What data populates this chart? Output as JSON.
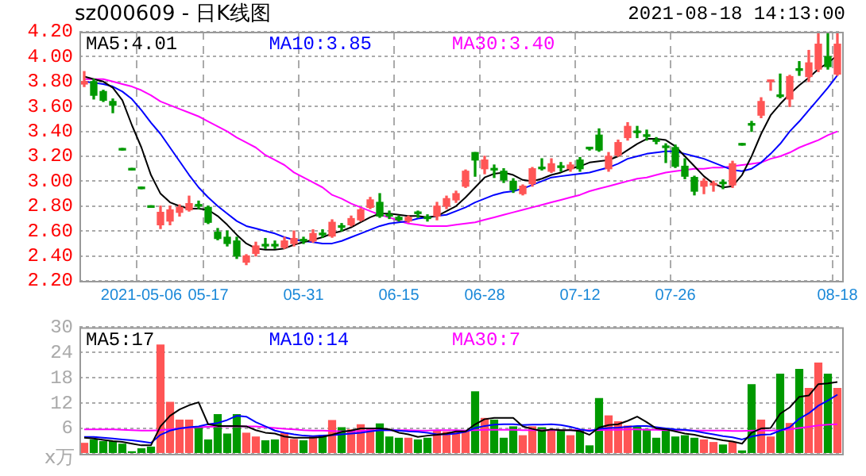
{
  "chart_data": [
    {
      "type": "candlestick",
      "title": "sz000609 - 日K线图",
      "subtitle": "2021-08-18 14:13:00",
      "categories": [
        null,
        null,
        null,
        null,
        null,
        null,
        "2021-05-06",
        null,
        null,
        null,
        null,
        null,
        null,
        "05-17",
        null,
        null,
        null,
        null,
        null,
        null,
        null,
        null,
        null,
        "05-31",
        null,
        null,
        null,
        null,
        null,
        null,
        null,
        null,
        null,
        "06-15",
        null,
        null,
        null,
        null,
        null,
        null,
        null,
        null,
        "06-28",
        null,
        null,
        null,
        null,
        null,
        null,
        null,
        null,
        null,
        "07-12",
        null,
        null,
        null,
        null,
        null,
        null,
        null,
        null,
        null,
        "07-26",
        null,
        null,
        null,
        null,
        null,
        null,
        null,
        null,
        null,
        null,
        null,
        null,
        null,
        null,
        null,
        null,
        "08-18"
      ],
      "ohlc": [
        [
          3.78,
          3.88,
          3.76,
          3.8
        ],
        [
          3.8,
          3.82,
          3.66,
          3.69
        ],
        [
          3.72,
          3.73,
          3.64,
          3.65
        ],
        [
          3.64,
          3.66,
          3.55,
          3.61
        ],
        [
          3.25,
          3.25,
          3.25,
          3.25
        ],
        [
          3.09,
          3.09,
          3.09,
          3.09
        ],
        [
          2.94,
          2.94,
          2.94,
          2.94
        ],
        [
          2.79,
          2.79,
          2.79,
          2.79
        ],
        [
          2.65,
          2.8,
          2.62,
          2.75
        ],
        [
          2.68,
          2.8,
          2.65,
          2.77
        ],
        [
          2.75,
          2.81,
          2.72,
          2.79
        ],
        [
          2.77,
          2.88,
          2.76,
          2.82
        ],
        [
          2.81,
          2.84,
          2.78,
          2.8
        ],
        [
          2.79,
          2.8,
          2.66,
          2.67
        ],
        [
          2.59,
          2.62,
          2.53,
          2.54
        ],
        [
          2.55,
          2.6,
          2.48,
          2.5
        ],
        [
          2.52,
          2.55,
          2.38,
          2.4
        ],
        [
          2.35,
          2.41,
          2.33,
          2.4
        ],
        [
          2.42,
          2.51,
          2.4,
          2.48
        ],
        [
          2.49,
          2.54,
          2.46,
          2.48
        ],
        [
          2.49,
          2.52,
          2.46,
          2.48
        ],
        [
          2.47,
          2.55,
          2.46,
          2.52
        ],
        [
          2.5,
          2.6,
          2.48,
          2.54
        ],
        [
          2.53,
          2.55,
          2.5,
          2.52
        ],
        [
          2.52,
          2.61,
          2.51,
          2.58
        ],
        [
          2.58,
          2.61,
          2.55,
          2.57
        ],
        [
          2.56,
          2.69,
          2.55,
          2.67
        ],
        [
          2.64,
          2.66,
          2.6,
          2.63
        ],
        [
          2.65,
          2.72,
          2.64,
          2.7
        ],
        [
          2.69,
          2.78,
          2.68,
          2.77
        ],
        [
          2.79,
          2.87,
          2.78,
          2.85
        ],
        [
          2.83,
          2.9,
          2.71,
          2.72
        ],
        [
          2.73,
          2.76,
          2.7,
          2.72
        ],
        [
          2.71,
          2.72,
          2.68,
          2.69
        ],
        [
          2.68,
          2.72,
          2.67,
          2.71
        ],
        [
          2.75,
          2.76,
          2.71,
          2.74
        ],
        [
          2.71,
          2.73,
          2.68,
          2.7
        ],
        [
          2.72,
          2.83,
          2.69,
          2.8
        ],
        [
          2.8,
          2.88,
          2.78,
          2.86
        ],
        [
          2.85,
          2.92,
          2.83,
          2.9
        ],
        [
          2.96,
          3.09,
          2.95,
          3.08
        ],
        [
          3.23,
          3.23,
          3.04,
          3.17
        ],
        [
          3.1,
          3.2,
          3.06,
          3.17
        ],
        [
          3.1,
          3.13,
          3.03,
          3.09
        ],
        [
          3.08,
          3.1,
          2.99,
          3.01
        ],
        [
          3.0,
          3.02,
          2.91,
          2.93
        ],
        [
          2.9,
          2.97,
          2.89,
          2.96
        ],
        [
          2.98,
          3.11,
          2.96,
          3.1
        ],
        [
          3.11,
          3.18,
          3.09,
          3.1
        ],
        [
          3.08,
          3.18,
          3.07,
          3.14
        ],
        [
          3.12,
          3.15,
          3.08,
          3.11
        ],
        [
          3.1,
          3.15,
          3.08,
          3.13
        ],
        [
          3.17,
          3.19,
          3.08,
          3.1
        ],
        [
          3.27,
          3.27,
          3.25,
          3.26
        ],
        [
          3.37,
          3.42,
          3.24,
          3.25
        ],
        [
          3.1,
          3.23,
          3.08,
          3.2
        ],
        [
          3.21,
          3.33,
          3.2,
          3.31
        ],
        [
          3.35,
          3.47,
          3.33,
          3.44
        ],
        [
          3.4,
          3.44,
          3.35,
          3.39
        ],
        [
          3.37,
          3.41,
          3.33,
          3.36
        ],
        [
          3.33,
          3.35,
          3.3,
          3.32
        ],
        [
          3.28,
          3.3,
          3.15,
          3.27
        ],
        [
          3.27,
          3.29,
          3.11,
          3.12
        ],
        [
          3.12,
          3.18,
          3.02,
          3.04
        ],
        [
          3.03,
          3.04,
          2.89,
          2.92
        ],
        [
          2.96,
          3.02,
          2.9,
          3.0
        ],
        [
          2.97,
          3.0,
          2.92,
          2.98
        ],
        [
          2.99,
          3.01,
          2.94,
          2.98
        ],
        [
          2.97,
          3.16,
          2.95,
          3.14
        ],
        [
          3.3,
          3.3,
          3.29,
          3.29
        ],
        [
          3.46,
          3.48,
          3.4,
          3.45
        ],
        [
          3.53,
          3.67,
          3.51,
          3.64
        ],
        [
          3.8,
          3.81,
          3.73,
          3.81
        ],
        [
          3.69,
          3.86,
          3.67,
          3.68
        ],
        [
          3.66,
          3.85,
          3.6,
          3.84
        ],
        [
          3.9,
          3.96,
          3.85,
          3.89
        ],
        [
          3.84,
          4.05,
          3.8,
          3.95
        ],
        [
          3.9,
          4.2,
          3.88,
          4.1
        ],
        [
          4.0,
          4.2,
          3.9,
          3.92
        ],
        [
          3.86,
          4.2,
          3.85,
          4.1
        ]
      ],
      "colors": [
        "#ff5555",
        "#009900",
        "#009900",
        "#009900",
        "#009900",
        "#009900",
        "#009900",
        "#009900",
        "#ff5555",
        "#ff5555",
        "#ff5555",
        "#ff5555",
        "#009900",
        "#009900",
        "#009900",
        "#009900",
        "#009900",
        "#ff5555",
        "#ff5555",
        "#009900",
        "#009900",
        "#ff5555",
        "#ff5555",
        "#009900",
        "#ff5555",
        "#009900",
        "#ff5555",
        "#009900",
        "#ff5555",
        "#ff5555",
        "#ff5555",
        "#009900",
        "#009900",
        "#009900",
        "#ff5555",
        "#009900",
        "#009900",
        "#ff5555",
        "#ff5555",
        "#ff5555",
        "#ff5555",
        "#009900",
        "#ff5555",
        "#009900",
        "#009900",
        "#009900",
        "#ff5555",
        "#ff5555",
        "#009900",
        "#ff5555",
        "#009900",
        "#ff5555",
        "#009900",
        "#009900",
        "#009900",
        "#ff5555",
        "#ff5555",
        "#ff5555",
        "#009900",
        "#009900",
        "#009900",
        "#009900",
        "#009900",
        "#009900",
        "#009900",
        "#ff5555",
        "#ff5555",
        "#009900",
        "#ff5555",
        "#009900",
        "#009900",
        "#ff5555",
        "#ff5555",
        "#009900",
        "#ff5555",
        "#009900",
        "#ff5555",
        "#ff5555",
        "#009900",
        "#ff5555"
      ],
      "series": [
        {
          "type": "line",
          "name": "MA5:4.01",
          "color": "#000000",
          "values": [
            3.84,
            3.82,
            3.8,
            3.75,
            3.65,
            3.45,
            3.27,
            3.05,
            2.9,
            2.83,
            2.8,
            2.78,
            2.78,
            2.77,
            2.72,
            2.65,
            2.57,
            2.5,
            2.46,
            2.45,
            2.45,
            2.46,
            2.49,
            2.51,
            2.53,
            2.55,
            2.58,
            2.6,
            2.63,
            2.67,
            2.71,
            2.74,
            2.74,
            2.73,
            2.72,
            2.72,
            2.71,
            2.72,
            2.76,
            2.8,
            2.87,
            2.95,
            3.03,
            3.06,
            3.07,
            3.05,
            3.01,
            3.0,
            3.02,
            3.05,
            3.07,
            3.1,
            3.12,
            3.15,
            3.16,
            3.17,
            3.2,
            3.25,
            3.3,
            3.34,
            3.34,
            3.33,
            3.28,
            3.2,
            3.12,
            3.04,
            2.98,
            2.95,
            2.96,
            3.05,
            3.2,
            3.38,
            3.53,
            3.62,
            3.7,
            3.77,
            3.83,
            3.9,
            3.95,
            4.01
          ]
        },
        {
          "type": "line",
          "name": "MA10:3.85",
          "color": "#0000ff",
          "values": [
            3.8,
            3.79,
            3.78,
            3.76,
            3.72,
            3.66,
            3.57,
            3.47,
            3.38,
            3.27,
            3.16,
            3.05,
            2.95,
            2.87,
            2.8,
            2.74,
            2.68,
            2.64,
            2.62,
            2.6,
            2.58,
            2.55,
            2.53,
            2.52,
            2.51,
            2.5,
            2.5,
            2.52,
            2.55,
            2.58,
            2.61,
            2.64,
            2.66,
            2.67,
            2.68,
            2.7,
            2.71,
            2.72,
            2.73,
            2.76,
            2.79,
            2.83,
            2.86,
            2.89,
            2.91,
            2.92,
            2.94,
            2.97,
            3.0,
            3.03,
            3.04,
            3.05,
            3.06,
            3.07,
            3.09,
            3.11,
            3.14,
            3.18,
            3.2,
            3.22,
            3.23,
            3.24,
            3.24,
            3.22,
            3.2,
            3.18,
            3.15,
            3.12,
            3.09,
            3.08,
            3.1,
            3.15,
            3.22,
            3.3,
            3.4,
            3.48,
            3.57,
            3.66,
            3.75,
            3.85
          ]
        },
        {
          "type": "line",
          "name": "MA30:3.40",
          "color": "#ff00ff",
          "values": [
            3.82,
            3.82,
            3.82,
            3.8,
            3.78,
            3.76,
            3.73,
            3.69,
            3.64,
            3.61,
            3.58,
            3.55,
            3.52,
            3.48,
            3.44,
            3.4,
            3.35,
            3.31,
            3.27,
            3.21,
            3.17,
            3.13,
            3.07,
            3.03,
            2.99,
            2.95,
            2.89,
            2.86,
            2.82,
            2.79,
            2.76,
            2.73,
            2.71,
            2.68,
            2.66,
            2.65,
            2.64,
            2.64,
            2.64,
            2.65,
            2.66,
            2.67,
            2.69,
            2.71,
            2.73,
            2.75,
            2.77,
            2.79,
            2.81,
            2.83,
            2.85,
            2.87,
            2.89,
            2.92,
            2.94,
            2.96,
            2.98,
            3.0,
            3.02,
            3.03,
            3.05,
            3.07,
            3.08,
            3.09,
            3.1,
            3.1,
            3.11,
            3.11,
            3.12,
            3.13,
            3.14,
            3.15,
            3.18,
            3.2,
            3.23,
            3.27,
            3.3,
            3.33,
            3.37,
            3.4
          ]
        }
      ],
      "ylim": [
        2.2,
        4.2
      ],
      "yticks": [
        {
          "value": 2.2,
          "label": "2.20"
        },
        {
          "value": 2.4,
          "label": "2.40"
        },
        {
          "value": 2.6,
          "label": "2.60"
        },
        {
          "value": 2.8,
          "label": "2.80"
        },
        {
          "value": 3.0,
          "label": "3.00"
        },
        {
          "value": 3.2,
          "label": "3.20"
        },
        {
          "value": 3.4,
          "label": "3.40"
        },
        {
          "value": 3.6,
          "label": "3.60"
        },
        {
          "value": 3.8,
          "label": "3.80"
        },
        {
          "value": 4.0,
          "label": "4.00"
        },
        {
          "value": 4.2,
          "label": "4.20"
        }
      ],
      "grid": true,
      "legend": "top"
    },
    {
      "type": "bar",
      "ylabel": "x万",
      "categories": [
        null,
        null,
        null,
        null,
        null,
        null,
        null,
        null,
        null,
        null,
        null,
        null,
        null,
        null,
        null,
        null,
        null,
        null,
        null,
        null,
        null,
        null,
        null,
        null,
        null,
        null,
        null,
        null,
        null,
        null,
        null,
        null,
        null,
        null,
        null,
        null,
        null,
        null,
        null,
        null,
        null,
        null,
        null,
        null,
        null,
        null,
        null,
        null,
        null,
        null,
        null,
        null,
        null,
        null,
        null,
        null,
        null,
        null,
        null,
        null,
        null,
        null,
        null,
        null,
        null,
        null,
        null,
        null,
        null,
        null,
        null,
        null,
        null,
        null,
        null,
        null,
        null,
        null,
        null,
        null
      ],
      "series": [
        {
          "type": "bar",
          "values": [
            2.6,
            3.4,
            3.0,
            3.0,
            2.4,
            0.6,
            1.3,
            1.7,
            25.9,
            12.3,
            8.1,
            8.1,
            6.5,
            3.4,
            9.4,
            4.8,
            9.4,
            5.0,
            4.1,
            3.2,
            3.4,
            5.0,
            3.5,
            3.2,
            4.1,
            4.4,
            8.0,
            6.3,
            5.8,
            7.0,
            6.0,
            7.2,
            4.1,
            3.8,
            3.8,
            3.4,
            3.8,
            5.5,
            5.3,
            5.3,
            5.5,
            14.8,
            8.5,
            8.1,
            3.8,
            6.5,
            4.4,
            6.5,
            6.3,
            5.5,
            5.5,
            4.4,
            5.5,
            2.0,
            13.2,
            9.1,
            7.7,
            6.7,
            6.5,
            5.9,
            3.8,
            6.1,
            4.1,
            4.4,
            3.8,
            3.4,
            2.8,
            2.2,
            2.8,
            0.8,
            16.5,
            8.1,
            4.1,
            19.0,
            7.3,
            20.1,
            15.6,
            21.6,
            19.0,
            15.6
          ],
          "colors": [
            "#ff5555",
            "#009900",
            "#009900",
            "#009900",
            "#009900",
            "#009900",
            "#009900",
            "#009900",
            "#ff5555",
            "#ff5555",
            "#ff5555",
            "#ff5555",
            "#009900",
            "#009900",
            "#009900",
            "#009900",
            "#009900",
            "#ff5555",
            "#ff5555",
            "#009900",
            "#009900",
            "#ff5555",
            "#ff5555",
            "#009900",
            "#ff5555",
            "#009900",
            "#ff5555",
            "#009900",
            "#ff5555",
            "#ff5555",
            "#ff5555",
            "#009900",
            "#009900",
            "#009900",
            "#ff5555",
            "#009900",
            "#009900",
            "#ff5555",
            "#ff5555",
            "#ff5555",
            "#ff5555",
            "#009900",
            "#ff5555",
            "#009900",
            "#009900",
            "#009900",
            "#ff5555",
            "#ff5555",
            "#009900",
            "#ff5555",
            "#009900",
            "#ff5555",
            "#009900",
            "#009900",
            "#009900",
            "#ff5555",
            "#ff5555",
            "#ff5555",
            "#009900",
            "#009900",
            "#009900",
            "#009900",
            "#009900",
            "#009900",
            "#009900",
            "#ff5555",
            "#ff5555",
            "#009900",
            "#ff5555",
            "#009900",
            "#009900",
            "#ff5555",
            "#ff5555",
            "#009900",
            "#ff5555",
            "#009900",
            "#ff5555",
            "#ff5555",
            "#009900",
            "#ff5555"
          ]
        },
        {
          "type": "line",
          "name": "MA5:17",
          "color": "#000000",
          "values": [
            3.8,
            3.6,
            3.3,
            3.0,
            2.8,
            2.4,
            2.0,
            2.0,
            6.5,
            9.0,
            10.5,
            11.5,
            12.2,
            7.0,
            6.6,
            6.6,
            6.6,
            6.5,
            5.6,
            5.0,
            4.8,
            4.1,
            3.8,
            3.8,
            3.8,
            4.0,
            4.5,
            5.2,
            5.5,
            6.0,
            6.0,
            6.0,
            5.8,
            5.0,
            4.6,
            4.0,
            4.3,
            4.5,
            4.8,
            5.3,
            5.3,
            7.0,
            8.2,
            8.5,
            8.5,
            8.5,
            6.5,
            5.9,
            5.4,
            5.8,
            5.6,
            5.6,
            5.4,
            4.5,
            6.2,
            6.8,
            7.0,
            7.8,
            8.8,
            7.5,
            6.0,
            5.8,
            5.3,
            4.8,
            4.5,
            4.0,
            3.6,
            3.2,
            2.9,
            2.4,
            5.0,
            6.0,
            6.1,
            9.5,
            11.0,
            13.5,
            13.8,
            16.5,
            16.7,
            17
          ]
        },
        {
          "type": "line",
          "name": "MA10:14",
          "color": "#0000ff",
          "values": [
            4.0,
            4.0,
            3.8,
            3.6,
            3.4,
            3.2,
            2.9,
            2.6,
            4.5,
            5.5,
            6.0,
            6.3,
            6.5,
            7.0,
            7.3,
            8.0,
            9.0,
            8.8,
            7.5,
            6.5,
            5.5,
            5.0,
            4.6,
            4.3,
            4.2,
            4.3,
            4.4,
            4.6,
            4.8,
            5.0,
            5.3,
            5.6,
            5.6,
            5.5,
            5.3,
            5.2,
            5.0,
            4.6,
            4.6,
            4.8,
            5.2,
            6.1,
            6.6,
            6.9,
            7.0,
            7.0,
            6.8,
            6.9,
            6.9,
            7.0,
            6.8,
            6.4,
            5.8,
            5.4,
            5.9,
            6.1,
            6.2,
            6.4,
            6.6,
            6.6,
            6.3,
            6.0,
            5.8,
            5.7,
            5.4,
            5.0,
            4.6,
            4.2,
            3.9,
            3.4,
            4.1,
            4.5,
            4.6,
            5.5,
            6.3,
            8.3,
            9.6,
            11.4,
            12.6,
            14
          ]
        },
        {
          "type": "line",
          "name": "MA30:7",
          "color": "#ff00ff",
          "values": [
            5.8,
            5.8,
            5.8,
            5.8,
            5.7,
            5.6,
            5.5,
            5.5,
            5.6,
            5.8,
            6.0,
            6.2,
            6.3,
            6.4,
            6.5,
            6.5,
            6.5,
            6.5,
            6.5,
            6.3,
            6.1,
            5.9,
            5.8,
            5.6,
            5.5,
            5.5,
            5.4,
            5.3,
            5.3,
            5.4,
            5.6,
            5.6,
            5.6,
            5.6,
            5.6,
            5.5,
            5.5,
            5.6,
            5.6,
            5.6,
            5.5,
            5.6,
            5.7,
            5.7,
            5.7,
            5.7,
            5.6,
            5.6,
            5.6,
            5.6,
            5.6,
            5.6,
            5.6,
            5.6,
            5.6,
            5.7,
            5.7,
            5.8,
            5.8,
            5.7,
            5.7,
            5.6,
            5.6,
            5.6,
            5.5,
            5.5,
            5.5,
            5.5,
            5.4,
            5.4,
            5.5,
            5.5,
            5.5,
            5.6,
            5.8,
            6.1,
            6.4,
            6.7,
            6.9,
            7.0
          ]
        }
      ],
      "ylim": [
        0,
        30
      ],
      "yticks": [
        {
          "value": 0,
          "label": null
        },
        6,
        12,
        18,
        24,
        30
      ],
      "grid": true,
      "legend": "top",
      "tick_labels": "y"
    }
  ]
}
